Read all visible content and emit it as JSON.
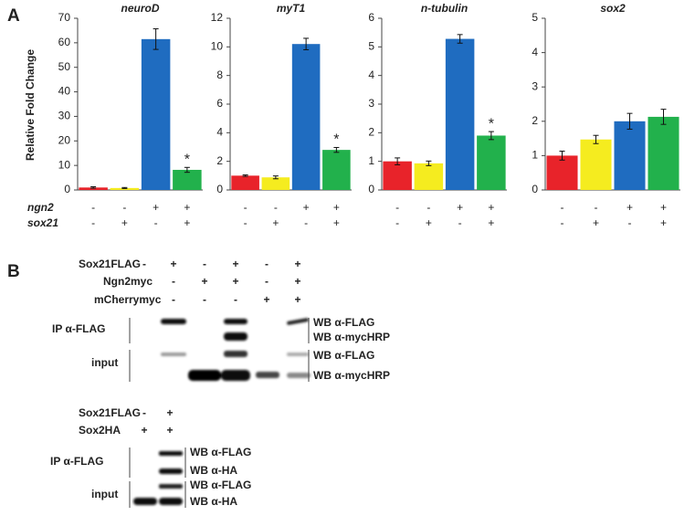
{
  "panel_labels": [
    "A",
    "B"
  ],
  "y_axis_label": "Relative Fold Change",
  "conditions": [
    {
      "name": "ngn2",
      "signs": [
        "-",
        "-",
        "+",
        "+"
      ]
    },
    {
      "name": "sox21",
      "signs": [
        "-",
        "+",
        "-",
        "+"
      ]
    }
  ],
  "chart_data": [
    {
      "type": "bar",
      "title": "neuroD",
      "values": [
        1.0,
        0.8,
        61.5,
        8.2
      ],
      "errors": [
        0.3,
        0.2,
        4.2,
        1.0
      ],
      "colors": [
        "#e8232a",
        "#f5ec1f",
        "#1f6cc0",
        "#22b14c"
      ],
      "annotations": [
        null,
        null,
        null,
        "*"
      ],
      "ylim": [
        0,
        70
      ],
      "yticks": [
        0,
        10,
        20,
        30,
        40,
        50,
        60,
        70
      ]
    },
    {
      "type": "bar",
      "title": "myT1",
      "values": [
        1.0,
        0.88,
        10.2,
        2.8
      ],
      "errors": [
        0.05,
        0.1,
        0.4,
        0.17
      ],
      "colors": [
        "#e8232a",
        "#f5ec1f",
        "#1f6cc0",
        "#22b14c"
      ],
      "annotations": [
        null,
        null,
        null,
        "*"
      ],
      "ylim": [
        0,
        12
      ],
      "yticks": [
        0,
        2,
        4,
        6,
        8,
        10,
        12
      ]
    },
    {
      "type": "bar",
      "title": "n-tubulin",
      "values": [
        1.0,
        0.93,
        5.28,
        1.9
      ],
      "errors": [
        0.12,
        0.08,
        0.15,
        0.14
      ],
      "colors": [
        "#e8232a",
        "#f5ec1f",
        "#1f6cc0",
        "#22b14c"
      ],
      "annotations": [
        null,
        null,
        null,
        "*"
      ],
      "ylim": [
        0,
        6
      ],
      "yticks": [
        0,
        1,
        2,
        3,
        4,
        5,
        6
      ]
    },
    {
      "type": "bar",
      "title": "sox2",
      "values": [
        1.0,
        1.47,
        2.0,
        2.13
      ],
      "errors": [
        0.13,
        0.12,
        0.23,
        0.22
      ],
      "colors": [
        "#e8232a",
        "#f5ec1f",
        "#1f6cc0",
        "#22b14c"
      ],
      "annotations": [
        null,
        null,
        null,
        null
      ],
      "ylim": [
        0,
        5
      ],
      "yticks": [
        0,
        1,
        2,
        3,
        4,
        5
      ]
    }
  ],
  "blots": [
    {
      "conditions": [
        {
          "name": "Sox21FLAG",
          "signs": [
            "-",
            "+",
            "-",
            "+",
            "-",
            "+"
          ]
        },
        {
          "name": "Ngn2myc",
          "signs": [
            null,
            "-",
            "+",
            "+",
            "-",
            "+"
          ]
        },
        {
          "name": "mCherrymyc",
          "signs": [
            null,
            "-",
            "-",
            "-",
            "+",
            "+"
          ]
        }
      ],
      "groups": [
        {
          "label": "IP α-FLAG",
          "rows": [
            "WB α-FLAG",
            "WB α-mycHRP"
          ]
        },
        {
          "label": "input",
          "rows": [
            "WB α-FLAG",
            "WB α-mycHRP"
          ]
        }
      ]
    },
    {
      "conditions": [
        {
          "name": "Sox21FLAG",
          "signs": [
            "-",
            "+"
          ]
        },
        {
          "name": "Sox2HA",
          "signs": [
            "+",
            "+"
          ]
        }
      ],
      "groups": [
        {
          "label": "IP α-FLAG",
          "rows": [
            "WB α-FLAG",
            "WB α-HA"
          ]
        },
        {
          "label": "input",
          "rows": [
            "WB α-FLAG",
            "WB α-HA"
          ]
        }
      ]
    }
  ]
}
